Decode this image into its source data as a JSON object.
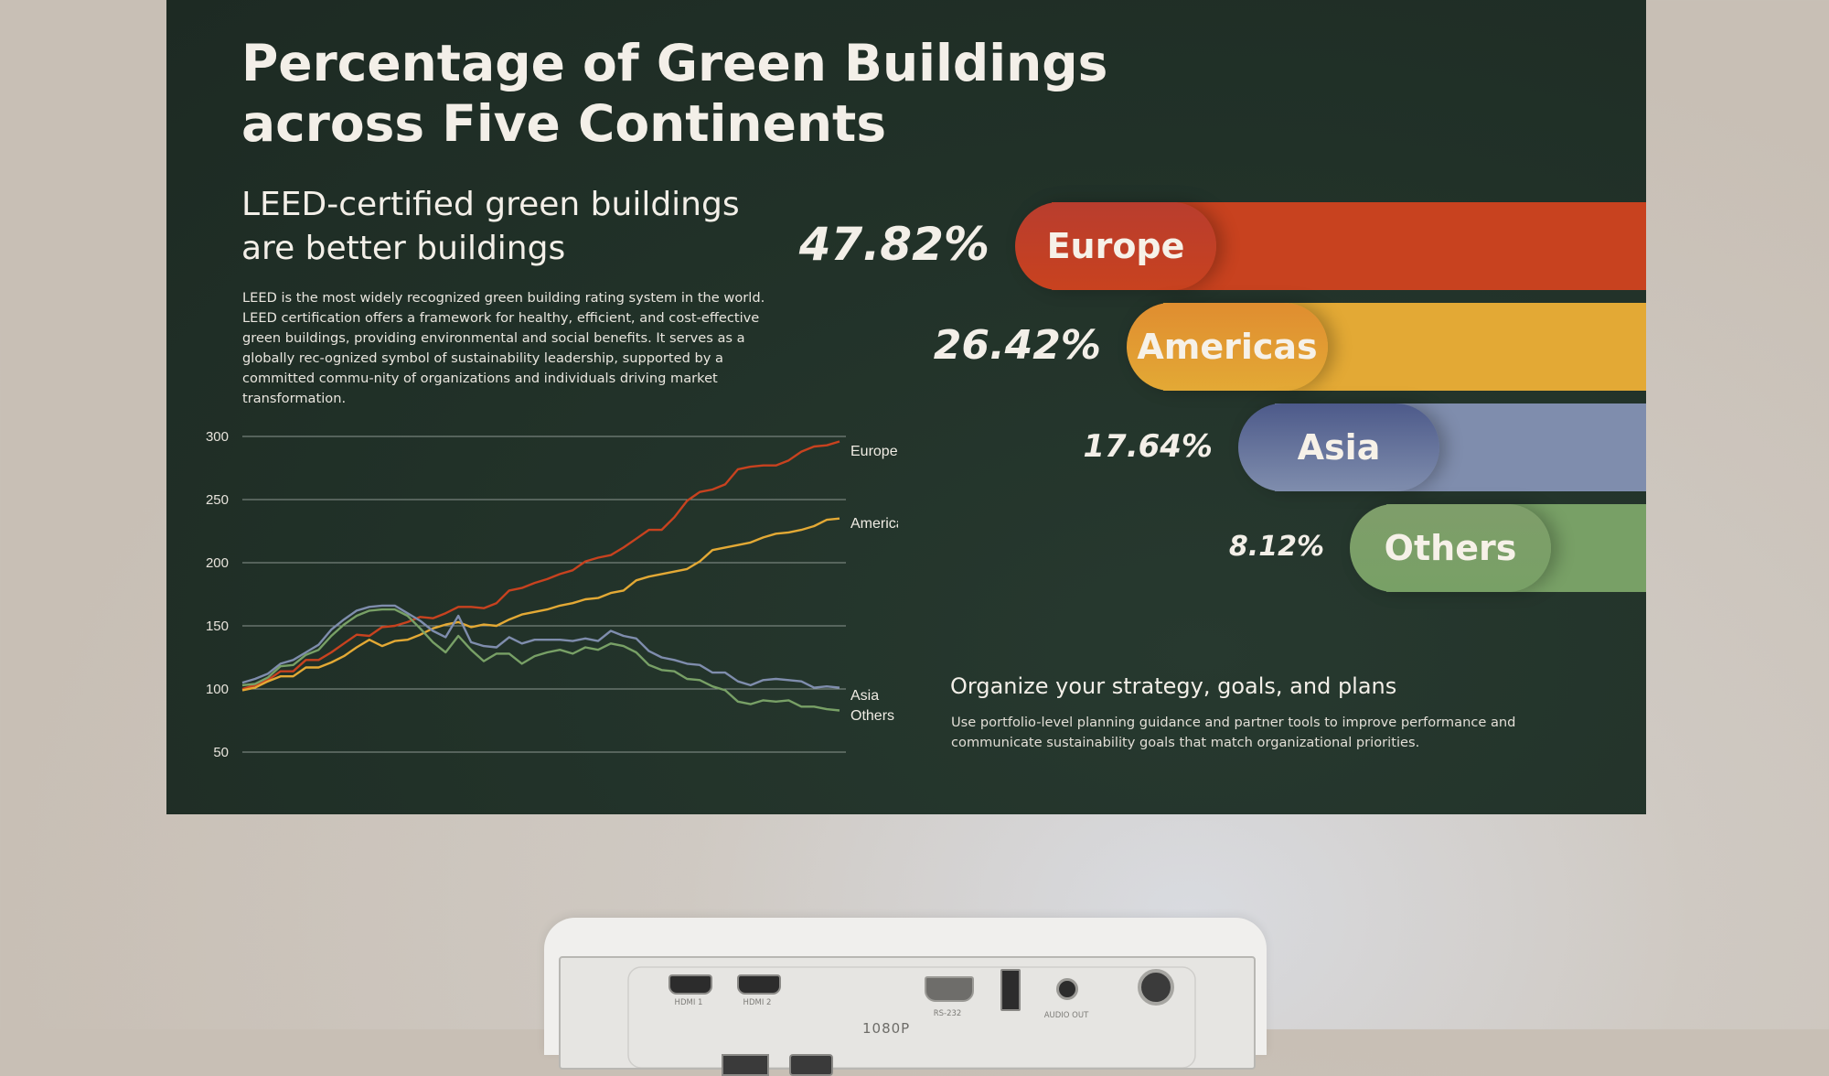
{
  "title": "Percentage of Green Buildings across Five Continents",
  "subtitle": "LEED-certified green buildings are better buildings",
  "description": "LEED is the most widely recognized green building rating system in the world. LEED certification offers a framework for healthy, efficient, and cost-effective green buildings, providing environmental and social benefits. It serves as a globally rec-ognized symbol of sustainability leadership, supported by a committed commu-nity of organizations and individuals driving market transformation.",
  "strategy": {
    "heading": "Organize your strategy, goals, and plans",
    "text": "Use portfolio-level planning guidance and partner tools to improve performance and communicate sustainability goals that match organizational priorities."
  },
  "projector": {
    "model": "1080P",
    "ports": [
      "HDMI 1",
      "HDMI 2",
      "RS-232",
      "AUDIO OUT"
    ]
  },
  "colors": {
    "Europe": "#c8421f",
    "Americas": "#e3a935",
    "Asia": "#7f8dad",
    "Others": "#78a066"
  },
  "chart_data": [
    {
      "type": "bar",
      "categories": [
        "Europe",
        "Americas",
        "Asia",
        "Others"
      ],
      "values": [
        47.82,
        26.42,
        17.64,
        8.12
      ],
      "labels": [
        "47.82%",
        "26.42%",
        "17.64%",
        "8.12%"
      ],
      "unit": "%"
    },
    {
      "type": "line",
      "ylim": [
        50,
        300
      ],
      "yticks": [
        50,
        100,
        150,
        200,
        250,
        300
      ],
      "grid": true,
      "x": [
        1,
        2,
        3,
        4,
        5,
        6,
        7,
        8,
        9,
        10,
        11,
        12,
        13,
        14,
        15,
        16,
        17,
        18,
        19,
        20,
        21,
        22,
        23,
        24,
        25,
        26,
        27,
        28,
        29,
        30,
        31,
        32,
        33,
        34,
        35,
        36,
        37,
        38,
        39,
        40,
        41,
        42,
        43,
        44,
        45,
        46,
        47,
        48
      ],
      "series": [
        {
          "name": "Europe",
          "values": [
            100,
            103,
            107,
            114,
            114,
            123,
            123,
            129,
            136,
            143,
            142,
            149,
            150,
            153,
            157,
            156,
            160,
            165,
            165,
            164,
            168,
            178,
            180,
            184,
            187,
            191,
            194,
            201,
            204,
            206,
            212,
            219,
            226,
            226,
            236,
            249,
            256,
            258,
            262,
            274,
            276,
            277,
            277,
            281,
            288,
            292,
            293,
            296
          ]
        },
        {
          "name": "Americas",
          "values": [
            99,
            101,
            106,
            110,
            110,
            117,
            117,
            121,
            126,
            133,
            139,
            134,
            138,
            139,
            143,
            148,
            151,
            153,
            149,
            151,
            150,
            155,
            159,
            161,
            163,
            166,
            168,
            171,
            172,
            176,
            178,
            186,
            189,
            191,
            193,
            195,
            201,
            210,
            212,
            214,
            216,
            220,
            223,
            224,
            226,
            229,
            234,
            235
          ]
        },
        {
          "name": "Asia",
          "values": [
            105,
            108,
            112,
            120,
            123,
            129,
            135,
            147,
            155,
            162,
            165,
            166,
            166,
            160,
            154,
            146,
            141,
            158,
            137,
            134,
            133,
            141,
            136,
            139,
            139,
            139,
            138,
            140,
            138,
            146,
            142,
            140,
            130,
            125,
            123,
            120,
            119,
            113,
            113,
            106,
            103,
            107,
            108,
            107,
            106,
            101,
            102,
            101
          ]
        },
        {
          "name": "Others",
          "values": [
            103,
            104,
            109,
            118,
            119,
            127,
            131,
            142,
            151,
            158,
            162,
            163,
            163,
            158,
            148,
            137,
            129,
            142,
            131,
            122,
            128,
            128,
            120,
            126,
            129,
            131,
            128,
            133,
            131,
            136,
            134,
            129,
            119,
            115,
            114,
            108,
            107,
            102,
            99,
            90,
            88,
            91,
            90,
            91,
            86,
            86,
            84,
            83
          ]
        }
      ]
    }
  ]
}
